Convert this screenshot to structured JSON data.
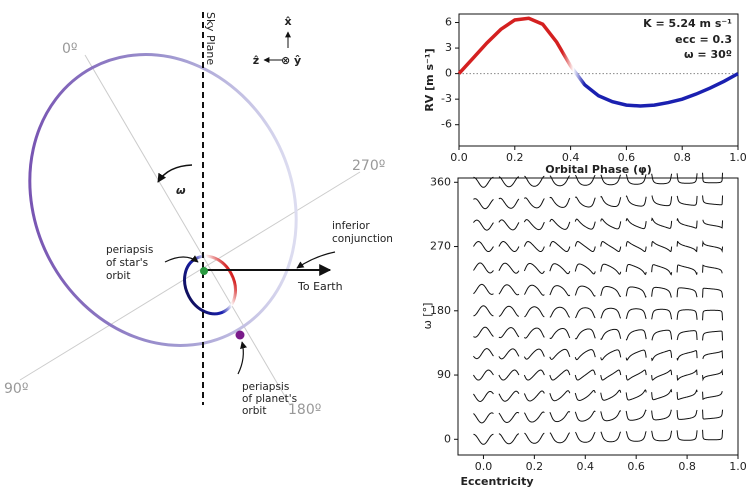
{
  "diagram": {
    "sky_plane": "Sky Plane",
    "angles": [
      "0º",
      "270º",
      "90º",
      "180º"
    ],
    "omega": "ω",
    "axes": {
      "x": "x̂",
      "z": "ẑ",
      "y": "⊗ ŷ"
    },
    "star_periapsis": [
      "periapsis",
      "of star's",
      "orbit"
    ],
    "conjunction": [
      "inferior",
      "conjunction"
    ],
    "to_earth": "To Earth",
    "planet_periapsis": [
      "periapsis",
      "of planet's",
      "orbit"
    ]
  },
  "chart_data": [
    {
      "type": "line",
      "annotations": [
        "K = 5.24 m s⁻¹",
        "ecc = 0.3",
        "ω = 30º"
      ],
      "xlabel": "Orbital Phase (φ)",
      "ylabel": "RV [m s⁻¹]",
      "x": [
        0,
        0.05,
        0.1,
        0.15,
        0.2,
        0.25,
        0.3,
        0.35,
        0.4,
        0.45,
        0.5,
        0.55,
        0.6,
        0.65,
        0.7,
        0.75,
        0.8,
        0.85,
        0.9,
        0.95,
        1
      ],
      "values": [
        0,
        1.8,
        3.6,
        5.2,
        6.3,
        6.5,
        5.8,
        3.7,
        0.9,
        -1.3,
        -2.6,
        -3.3,
        -3.7,
        -3.8,
        -3.7,
        -3.4,
        -3.0,
        -2.4,
        -1.7,
        -0.9,
        0
      ],
      "colors": [
        "#d42020",
        "#ffffff",
        "#1a20b0"
      ],
      "xlim": [
        0,
        1
      ],
      "ylim": [
        -8.5,
        7
      ],
      "xticks": [
        {
          "value": 0,
          "label": "0.0"
        },
        0.2,
        0.4,
        0.6,
        0.8,
        {
          "value": 1,
          "label": "1.0"
        }
      ],
      "yticks": [
        -6,
        -3,
        0,
        3,
        6
      ]
    },
    {
      "type": "grid",
      "xlabel": "Eccentricity",
      "ylabel": "ω [°]",
      "eccentricities": [
        0,
        0.1,
        0.2,
        0.3,
        0.4,
        0.5,
        0.6,
        0.7,
        0.8,
        0.9
      ],
      "omegas": [
        0,
        30,
        60,
        90,
        120,
        150,
        180,
        210,
        240,
        270,
        300,
        330,
        360
      ],
      "color": "#111111",
      "xlim": [
        -0.1,
        1
      ],
      "ylim": [
        -22,
        366
      ],
      "xticks": [
        {
          "value": 0,
          "label": "0.0"
        },
        0.2,
        0.4,
        0.6,
        0.8,
        {
          "value": 1,
          "label": "1.0"
        }
      ],
      "yticks": [
        0,
        90,
        180,
        270,
        360
      ]
    }
  ]
}
